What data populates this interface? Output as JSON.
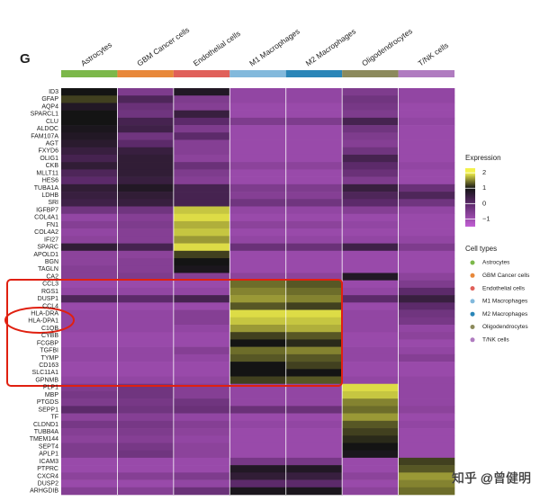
{
  "chart_data": {
    "type": "heatmap",
    "panel_label": "G",
    "categories": [
      "Astrocytes",
      "GBM Cancer cells",
      "Endothelial cells",
      "M1 Macrophages",
      "M2 Macrophages",
      "Oligodendrocytes",
      "T/NK cells"
    ],
    "category_colors": [
      "#7cb84a",
      "#e8883a",
      "#e0605a",
      "#82b9dc",
      "#2a86b8",
      "#8c8a5c",
      "#b07cc0"
    ],
    "genes": [
      "ID3",
      "GFAP",
      "AQP4",
      "SPARCL1",
      "CLU",
      "ALDOC",
      "FAM107A",
      "AGT",
      "FXYD6",
      "OLIG1",
      "CKB",
      "MLLT11",
      "HES6",
      "TUBA1A",
      "LDHB",
      "SRI",
      "IGFBP7",
      "COL4A1",
      "FN1",
      "COL4A2",
      "IFI27",
      "SPARC",
      "APOLD1",
      "BGN",
      "TAGLN",
      "CA2",
      "CCL3",
      "RGS1",
      "DUSP1",
      "CCL4",
      "HLA-DRA",
      "HLA-DPA1",
      "C1QB",
      "CYBB",
      "FCGBP",
      "TGFBI",
      "TYMP",
      "CD163",
      "SLC11A1",
      "GPNMB",
      "PLP1",
      "MBP",
      "PTGDS",
      "SEPP1",
      "TF",
      "CLDND1",
      "TUBB4A",
      "TMEM144",
      "SEPT4",
      "APLP1",
      "ICAM3",
      "PTPRC",
      "CXCR4",
      "DUSP2",
      "ARHGDIB"
    ],
    "values": [
      [
        1,
        -0.5,
        0.8,
        -0.8,
        -0.8,
        -0.5,
        -0.8
      ],
      [
        1.2,
        0.2,
        -0.5,
        -0.8,
        -0.8,
        -0.3,
        -0.8
      ],
      [
        0.8,
        -0.2,
        -0.6,
        -0.9,
        -0.9,
        -0.4,
        -0.9
      ],
      [
        1,
        -0.3,
        0.5,
        -0.9,
        -0.9,
        -0.5,
        -0.9
      ],
      [
        1,
        0.3,
        0,
        -0.5,
        -0.5,
        0.3,
        -0.8
      ],
      [
        0.9,
        0.4,
        -0.5,
        -0.9,
        -0.9,
        -0.3,
        -0.9
      ],
      [
        0.8,
        -0.3,
        0,
        -0.9,
        -0.9,
        -0.5,
        -0.9
      ],
      [
        0.7,
        0,
        -0.6,
        -0.9,
        -0.9,
        -0.6,
        -0.9
      ],
      [
        0.5,
        0.5,
        -0.6,
        -0.9,
        -0.9,
        -0.3,
        -0.9
      ],
      [
        0.3,
        0.6,
        -0.7,
        -0.9,
        -0.9,
        0.3,
        -0.9
      ],
      [
        0.6,
        0.6,
        -0.2,
        -0.7,
        -0.7,
        0,
        -0.8
      ],
      [
        0.2,
        0.6,
        -0.5,
        -0.9,
        -0.9,
        -0.2,
        -0.9
      ],
      [
        0,
        0.5,
        -0.6,
        -0.9,
        -0.9,
        -0.5,
        -0.9
      ],
      [
        0.6,
        0.8,
        0.3,
        -0.5,
        -0.5,
        0.5,
        -0.2
      ],
      [
        0.5,
        0.6,
        0.3,
        -0.6,
        -0.6,
        0.2,
        0.2
      ],
      [
        0.4,
        0.5,
        0.3,
        -0.3,
        -0.3,
        0,
        -0.3
      ],
      [
        -0.3,
        -0.3,
        1.8,
        -0.8,
        -0.8,
        -0.6,
        -0.8
      ],
      [
        -0.8,
        -0.6,
        1.9,
        -0.9,
        -0.9,
        -0.9,
        -0.9
      ],
      [
        -0.6,
        -0.5,
        1.7,
        -0.7,
        -0.7,
        -0.8,
        -0.9
      ],
      [
        -0.8,
        -0.6,
        1.8,
        -0.9,
        -0.9,
        -0.9,
        -0.9
      ],
      [
        -0.7,
        -0.6,
        1.6,
        -0.8,
        -0.8,
        -0.8,
        -0.8
      ],
      [
        0.6,
        0.3,
        1.9,
        -0.2,
        -0.2,
        0.4,
        -0.5
      ],
      [
        -0.7,
        -0.7,
        1.2,
        -0.9,
        -0.9,
        -0.9,
        -0.9
      ],
      [
        -0.7,
        -0.6,
        1,
        -0.9,
        -0.9,
        -0.9,
        -0.9
      ],
      [
        -0.6,
        -0.6,
        0.9,
        -0.9,
        -0.9,
        -0.9,
        -0.9
      ],
      [
        -0.6,
        -0.5,
        -0.6,
        -0.7,
        -0.7,
        0.8,
        -0.7
      ],
      [
        -0.9,
        -0.9,
        -0.9,
        1.4,
        1.3,
        -0.9,
        -0.5
      ],
      [
        -0.8,
        -0.8,
        -0.8,
        1.5,
        1.4,
        -0.8,
        0
      ],
      [
        0.2,
        0,
        0.3,
        1.6,
        1.5,
        0,
        0.5
      ],
      [
        -0.9,
        -0.9,
        -0.9,
        1.3,
        1.2,
        -0.9,
        0
      ],
      [
        -0.8,
        -0.8,
        -0.6,
        1.9,
        1.9,
        -0.8,
        -0.3
      ],
      [
        -0.8,
        -0.8,
        -0.6,
        1.8,
        1.8,
        -0.8,
        -0.4
      ],
      [
        -0.8,
        -0.8,
        -0.8,
        1.6,
        1.7,
        -0.8,
        -0.8
      ],
      [
        -0.9,
        -0.9,
        -0.9,
        1.2,
        1.3,
        -0.9,
        -0.7
      ],
      [
        -0.9,
        -0.9,
        -0.9,
        1,
        1.1,
        -0.9,
        -0.9
      ],
      [
        -0.8,
        -0.8,
        -0.6,
        1.4,
        1.5,
        -0.8,
        -0.8
      ],
      [
        -0.8,
        -0.8,
        -0.8,
        1.3,
        1.3,
        -0.8,
        -0.6
      ],
      [
        -0.9,
        -0.9,
        -0.9,
        1,
        1.2,
        -0.9,
        -0.9
      ],
      [
        -0.9,
        -0.9,
        -0.9,
        1,
        1,
        -0.9,
        -0.9
      ],
      [
        -0.8,
        -0.8,
        -0.8,
        1.2,
        1.3,
        -0.8,
        -0.8
      ],
      [
        -0.5,
        -0.3,
        -0.6,
        -0.8,
        -0.8,
        1.9,
        -0.8
      ],
      [
        -0.4,
        -0.3,
        -0.6,
        -0.8,
        -0.8,
        1.8,
        -0.8
      ],
      [
        -0.5,
        -0.4,
        -0.3,
        -0.8,
        -0.8,
        1.5,
        -0.8
      ],
      [
        0,
        -0.3,
        -0.2,
        -0.2,
        -0.2,
        1.4,
        -0.7
      ],
      [
        -0.7,
        -0.6,
        -0.8,
        -0.9,
        -0.9,
        1.6,
        -0.9
      ],
      [
        -0.4,
        -0.4,
        -0.6,
        -0.8,
        -0.8,
        1.3,
        -0.8
      ],
      [
        -0.6,
        -0.5,
        -0.7,
        -0.9,
        -0.9,
        1.2,
        -0.9
      ],
      [
        -0.7,
        -0.6,
        -0.8,
        -0.9,
        -0.9,
        1.1,
        -0.9
      ],
      [
        -0.5,
        -0.4,
        -0.7,
        -0.9,
        -0.9,
        1,
        -0.9
      ],
      [
        -0.5,
        -0.3,
        -0.7,
        -0.9,
        -0.9,
        0.9,
        -0.9
      ],
      [
        -0.9,
        -0.9,
        -0.9,
        -0.4,
        -0.4,
        -0.9,
        1.2
      ],
      [
        -0.9,
        -0.9,
        -0.9,
        0.8,
        0.8,
        -0.9,
        1.3
      ],
      [
        -0.7,
        -0.6,
        -0.5,
        0.6,
        0.5,
        -0.7,
        1.6
      ],
      [
        -0.9,
        -0.9,
        -0.8,
        0,
        0,
        -0.9,
        1.5
      ],
      [
        -0.6,
        -0.6,
        -0.2,
        0.9,
        0.9,
        -0.7,
        1.4
      ]
    ],
    "colorbar_title": "Expression",
    "zlim": [
      -1.5,
      2.3
    ],
    "zticks": [
      2,
      1,
      0,
      {
        "value": -1,
        "label": "−1"
      }
    ],
    "colorscale": [
      [
        -1.5,
        "#c25fd4"
      ],
      [
        0,
        "#5c2a6a"
      ],
      [
        1,
        "#141414"
      ],
      [
        2,
        "#f3f24c"
      ]
    ],
    "legend_title": "Cell types",
    "watermark": "知乎 @曾健明"
  }
}
